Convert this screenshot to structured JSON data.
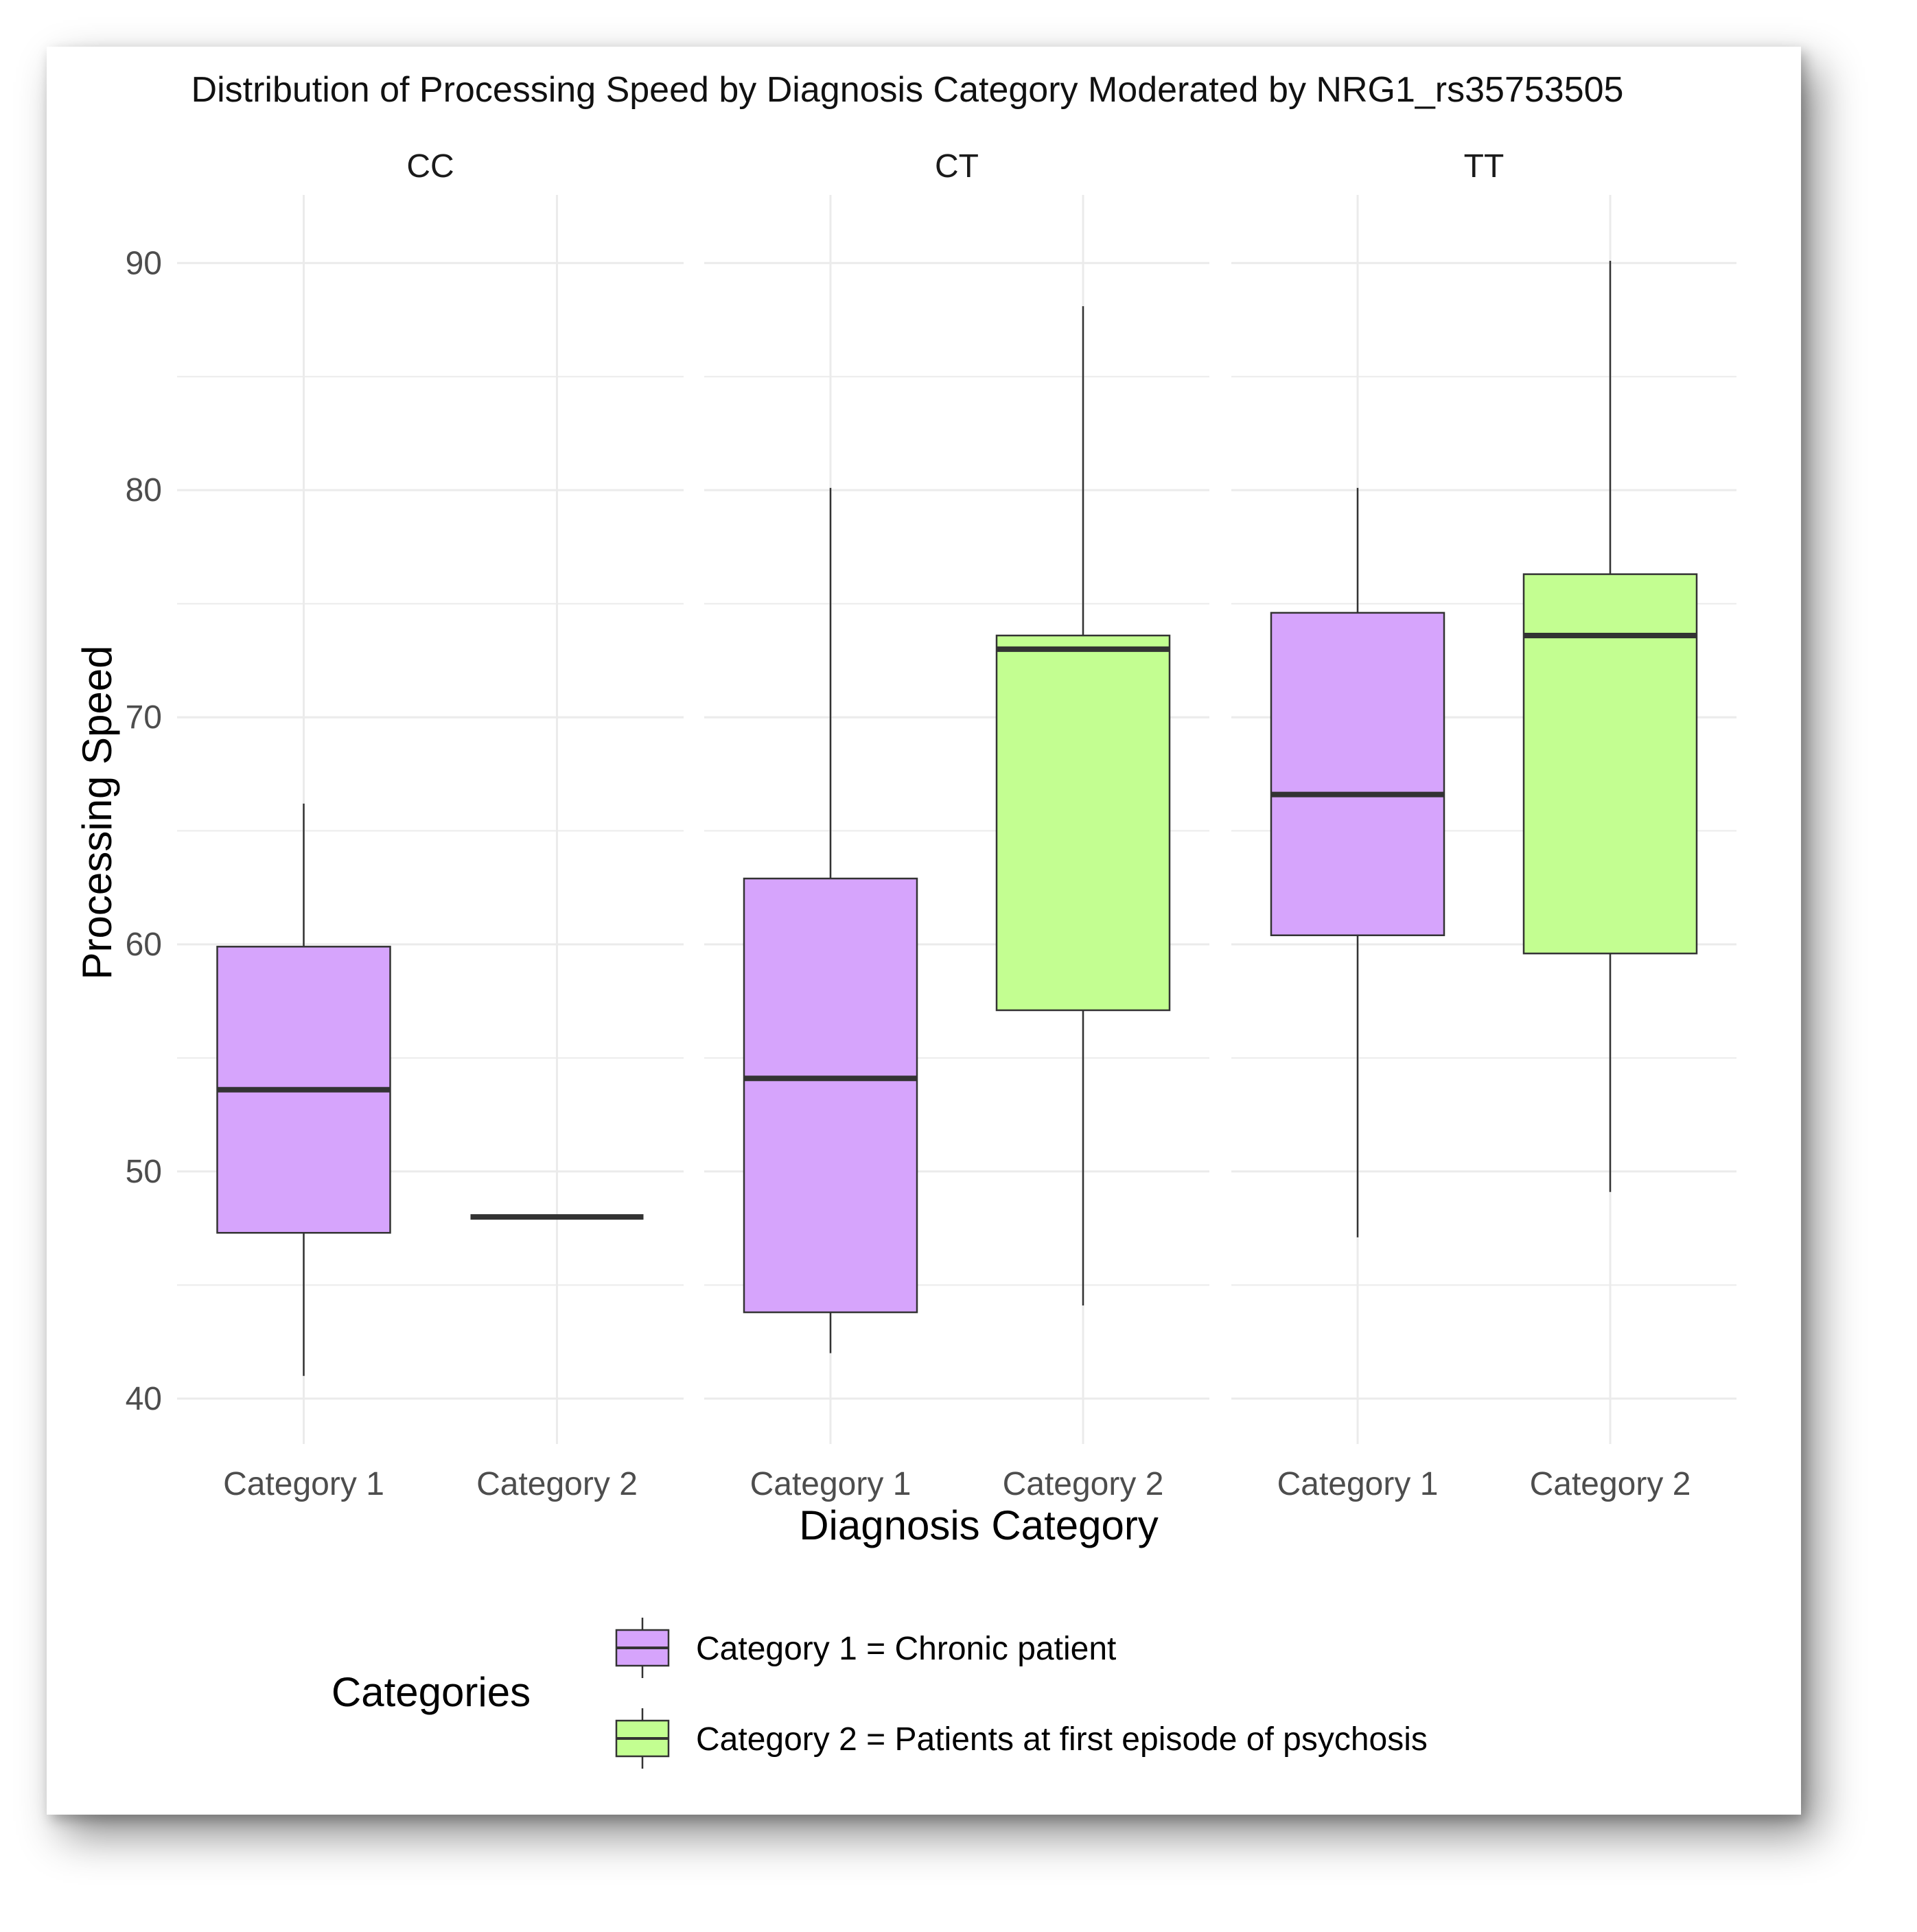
{
  "chart_data": {
    "type": "boxplot",
    "title": "Distribution of Processing Speed by Diagnosis Category Moderated by NRG1_rs35753505",
    "xlabel": "Diagnosis Category",
    "ylabel": "Processing Speed",
    "ylim": [
      38,
      93
    ],
    "yticks": [
      40,
      50,
      60,
      70,
      80,
      90
    ],
    "categories": [
      "Category 1",
      "Category 2"
    ],
    "facets": [
      {
        "label": "CC",
        "boxes": [
          {
            "category": "Category 1",
            "min": 41,
            "q1": 47.3,
            "median": 53.6,
            "q3": 59.9,
            "max": 66.2
          },
          {
            "category": "Category 2",
            "min": 48,
            "q1": 48,
            "median": 48,
            "q3": 48,
            "max": 48
          }
        ]
      },
      {
        "label": "CT",
        "boxes": [
          {
            "category": "Category 1",
            "min": 42,
            "q1": 43.8,
            "median": 54.1,
            "q3": 62.9,
            "max": 80.1
          },
          {
            "category": "Category 2",
            "min": 44.1,
            "q1": 57.1,
            "median": 73,
            "q3": 73.6,
            "max": 88.1
          }
        ]
      },
      {
        "label": "TT",
        "boxes": [
          {
            "category": "Category 1",
            "min": 47.1,
            "q1": 60.4,
            "median": 66.6,
            "q3": 74.6,
            "max": 80.1
          },
          {
            "category": "Category 2",
            "min": 49.1,
            "q1": 59.6,
            "median": 73.6,
            "q3": 76.3,
            "max": 90.1
          }
        ]
      }
    ],
    "legend": {
      "title": "Categories",
      "position": "bottom",
      "items": [
        {
          "label": "Category 1 = Chronic patient",
          "color": "#d6a4fc"
        },
        {
          "label": "Category 2 = Patients at first episode of psychosis",
          "color": "#c3fe91"
        }
      ]
    }
  },
  "colors": {
    "category_1": "#d6a4fc",
    "category_2": "#c3fe91",
    "gridline": "#ebebeb",
    "median": "#333333"
  }
}
